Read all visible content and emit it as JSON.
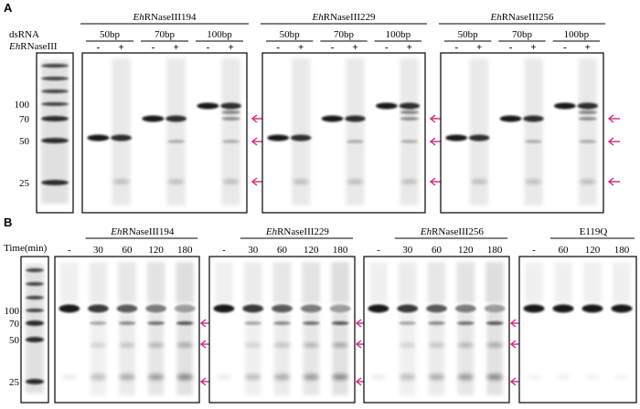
{
  "panel_a": {
    "letter": "A",
    "row_label_dsrna": "dsRNA",
    "row_label_enzyme_prefix": "Eh",
    "row_label_enzyme_suffix": "RNaseIII",
    "marker_labels": [
      "100",
      "70",
      "50",
      "25"
    ],
    "groups": [
      {
        "prefix": "Eh",
        "suffix": "RNaseIII194",
        "sizes": [
          "50bp",
          "70bp",
          "100bp"
        ]
      },
      {
        "prefix": "Eh",
        "suffix": "RNaseIII229",
        "sizes": [
          "50bp",
          "70bp",
          "100bp"
        ]
      },
      {
        "prefix": "Eh",
        "suffix": "RNaseIII256",
        "sizes": [
          "50bp",
          "70bp",
          "100bp"
        ]
      }
    ],
    "lane_signs": [
      "-",
      "+"
    ]
  },
  "panel_b": {
    "letter": "B",
    "time_label": "Time(min)",
    "marker_labels": [
      "100",
      "70",
      "50",
      "25"
    ],
    "groups": [
      {
        "prefix": "Eh",
        "suffix": "RNaseIII194",
        "times": [
          "-",
          "30",
          "60",
          "120",
          "180"
        ]
      },
      {
        "prefix": "Eh",
        "suffix": "RNaseIII229",
        "times": [
          "-",
          "30",
          "60",
          "120",
          "180"
        ]
      },
      {
        "prefix": "Eh",
        "suffix": "RNaseIII256",
        "times": [
          "-",
          "30",
          "60",
          "120",
          "180"
        ]
      },
      {
        "prefix": "",
        "suffix": "E119Q",
        "times": [
          "-",
          "60",
          "120",
          "180"
        ]
      }
    ]
  },
  "colors": {
    "arrow": "#d6247f",
    "gel_band": "#111111",
    "frame": "#000000"
  }
}
